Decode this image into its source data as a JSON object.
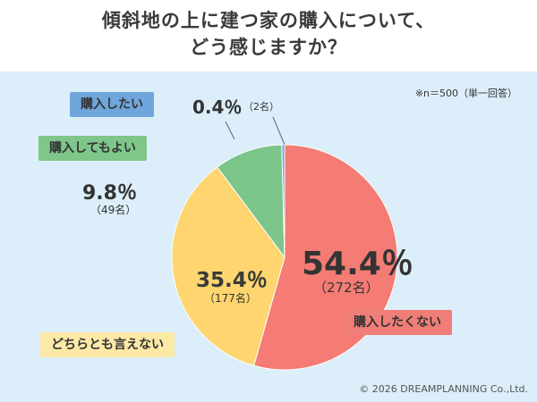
{
  "header": {
    "title_line1": "傾斜地の上に建つ家の購入について、",
    "title_line2": "どう感じますか？"
  },
  "note": "※n＝500（単一回答）",
  "copyright": "© 2026 DREAMPLANNING Co.,Ltd.",
  "colors": {
    "red": "#f47c74",
    "yellow": "#fed56e",
    "green": "#7cc58a",
    "blue": "#6fa6dc",
    "background": "#dbeef9"
  },
  "chart_data": {
    "type": "pie",
    "title": "傾斜地の上に建つ家の購入について、どう感じますか？",
    "slices": [
      {
        "label": "購入したくない",
        "percent": 54.4,
        "percent_label": "54.4％",
        "count_label": "（272名）",
        "color": "#f47c74"
      },
      {
        "label": "どちらとも言えない",
        "percent": 35.4,
        "percent_label": "35.4％",
        "count_label": "（177名）",
        "color": "#fed56e"
      },
      {
        "label": "購入してもよい",
        "percent": 9.8,
        "percent_label": "9.8％",
        "count_label": "（49名）",
        "color": "#7cc58a"
      },
      {
        "label": "購入したい",
        "percent": 0.4,
        "percent_label": "0.4％",
        "count_label": "（2名）",
        "color": "#6fa6dc"
      }
    ],
    "start": "12 o'clock",
    "direction": "clockwise"
  }
}
